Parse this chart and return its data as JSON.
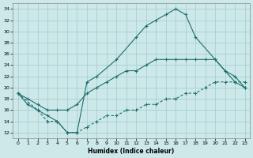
{
  "xlabel": "Humidex (Indice chaleur)",
  "background_color": "#cce8e8",
  "grid_color": "#aad0d0",
  "line_color": "#1e6e6e",
  "xlim": [
    -0.5,
    23.5
  ],
  "ylim": [
    11,
    35
  ],
  "yticks": [
    12,
    14,
    16,
    18,
    20,
    22,
    24,
    26,
    28,
    30,
    32,
    34
  ],
  "xticks": [
    0,
    1,
    2,
    3,
    4,
    5,
    6,
    7,
    8,
    9,
    10,
    11,
    12,
    13,
    14,
    15,
    16,
    17,
    18,
    19,
    20,
    21,
    22,
    23
  ],
  "line1_x": [
    0,
    1,
    2,
    3,
    4,
    5,
    6,
    7,
    8,
    10,
    12,
    13,
    14,
    15,
    16,
    17,
    18,
    20,
    21,
    22,
    23
  ],
  "line1_y": [
    19,
    17,
    16,
    15,
    14,
    12,
    12,
    21,
    22,
    25,
    29,
    31,
    32,
    33,
    34,
    33,
    29,
    25,
    23,
    21,
    20
  ],
  "line2_x": [
    0,
    1,
    2,
    3,
    4,
    5,
    6,
    7,
    8,
    9,
    10,
    11,
    12,
    13,
    14,
    15,
    16,
    17,
    18,
    19,
    20,
    21,
    22,
    23
  ],
  "line2_y": [
    19,
    18,
    17,
    16,
    16,
    16,
    17,
    19,
    20,
    21,
    22,
    23,
    23,
    24,
    25,
    25,
    25,
    25,
    25,
    25,
    25,
    23,
    22,
    20
  ],
  "line3_x": [
    0,
    2,
    3,
    4,
    5,
    6,
    7,
    8,
    9,
    10,
    11,
    12,
    13,
    14,
    15,
    16,
    17,
    18,
    19,
    20,
    21,
    22,
    23
  ],
  "line3_y": [
    19,
    16,
    14,
    14,
    12,
    12,
    13,
    14,
    15,
    15,
    16,
    16,
    17,
    17,
    18,
    18,
    19,
    19,
    20,
    21,
    21,
    21,
    21
  ]
}
